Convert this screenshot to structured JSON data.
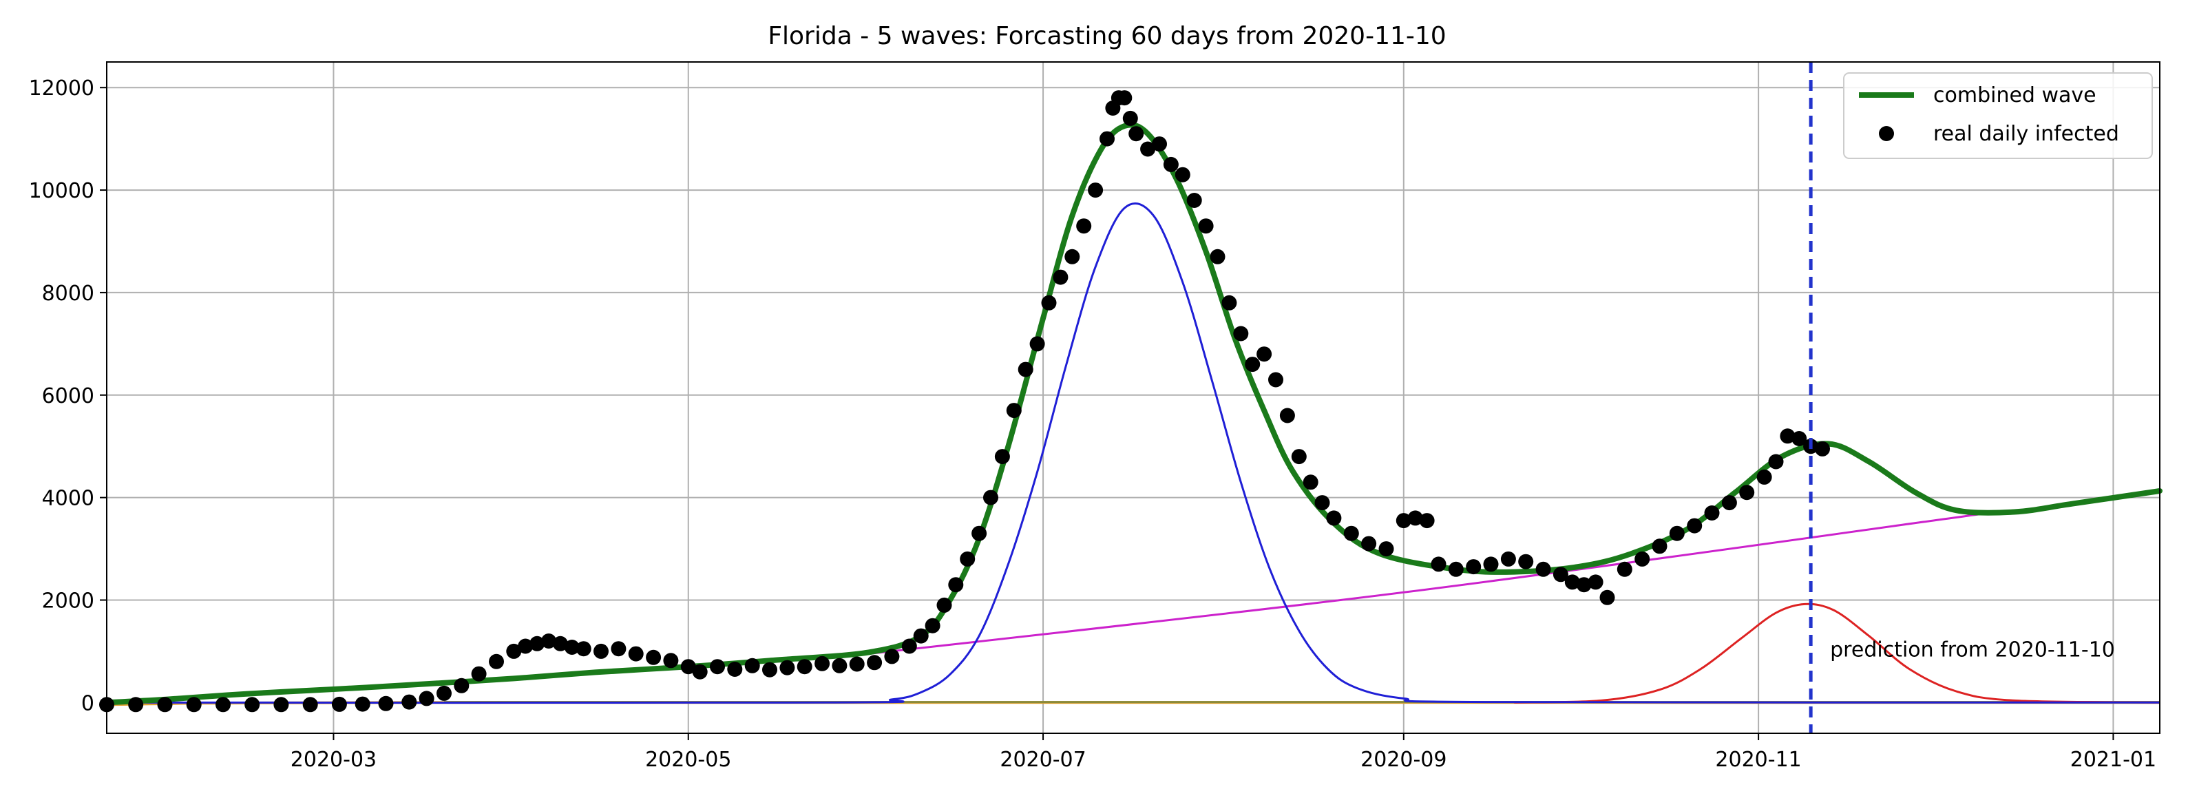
{
  "chart_data": {
    "type": "line",
    "title": "Florida - 5 waves:  Forcasting 60 days from 2020-11-10",
    "xlabel": "",
    "ylabel": "",
    "x_range": [
      "2020-01-22",
      "2021-01-09"
    ],
    "ylim": [
      -600,
      12500
    ],
    "grid": true,
    "x_ticks": [
      "2020-03",
      "2020-05",
      "2020-07",
      "2020-09",
      "2020-11",
      "2021-01"
    ],
    "y_ticks": [
      0,
      2000,
      4000,
      6000,
      8000,
      10000,
      12000
    ],
    "legend_position": "top-right",
    "legend": [
      {
        "label": "combined wave",
        "kind": "line",
        "color": "#1a7a1a"
      },
      {
        "label": "real daily infected",
        "kind": "marker",
        "color": "#000000"
      }
    ],
    "forecast_line": {
      "date": "2020-11-10",
      "color": "#2233cc"
    },
    "annotation": "prediction from 2020-11-10",
    "series": [
      {
        "name": "combined wave",
        "kind": "line",
        "color": "#1a7a1a",
        "width": 8,
        "points": [
          [
            "2020-01-22",
            0
          ],
          [
            "2020-02-01",
            60
          ],
          [
            "2020-02-15",
            170
          ],
          [
            "2020-03-01",
            260
          ],
          [
            "2020-03-15",
            350
          ],
          [
            "2020-04-01",
            470
          ],
          [
            "2020-04-15",
            590
          ],
          [
            "2020-05-01",
            700
          ],
          [
            "2020-05-15",
            820
          ],
          [
            "2020-06-01",
            980
          ],
          [
            "2020-06-10",
            1300
          ],
          [
            "2020-06-15",
            2000
          ],
          [
            "2020-06-20",
            3200
          ],
          [
            "2020-06-25",
            5000
          ],
          [
            "2020-07-01",
            7500
          ],
          [
            "2020-07-06",
            9500
          ],
          [
            "2020-07-11",
            10800
          ],
          [
            "2020-07-15",
            11250
          ],
          [
            "2020-07-19",
            11100
          ],
          [
            "2020-07-24",
            10200
          ],
          [
            "2020-07-29",
            8800
          ],
          [
            "2020-08-03",
            7100
          ],
          [
            "2020-08-08",
            5700
          ],
          [
            "2020-08-13",
            4500
          ],
          [
            "2020-08-20",
            3500
          ],
          [
            "2020-08-28",
            2900
          ],
          [
            "2020-09-10",
            2600
          ],
          [
            "2020-09-20",
            2550
          ],
          [
            "2020-10-01",
            2650
          ],
          [
            "2020-10-10",
            2900
          ],
          [
            "2020-10-20",
            3400
          ],
          [
            "2020-10-28",
            4100
          ],
          [
            "2020-11-05",
            4800
          ],
          [
            "2020-11-13",
            5050
          ],
          [
            "2020-11-20",
            4700
          ],
          [
            "2020-11-28",
            4100
          ],
          [
            "2020-12-05",
            3750
          ],
          [
            "2020-12-15",
            3720
          ],
          [
            "2020-12-25",
            3880
          ],
          [
            "2021-01-09",
            4130
          ]
        ]
      },
      {
        "name": "wave 1",
        "kind": "line",
        "color": "#1f1fd6",
        "width": 3,
        "points": [
          [
            "2020-01-22",
            0
          ],
          [
            "2020-05-25",
            0
          ],
          [
            "2020-06-05",
            60
          ],
          [
            "2020-06-10",
            200
          ],
          [
            "2020-06-15",
            550
          ],
          [
            "2020-06-20",
            1300
          ],
          [
            "2020-06-25",
            2700
          ],
          [
            "2020-06-30",
            4500
          ],
          [
            "2020-07-05",
            6600
          ],
          [
            "2020-07-10",
            8500
          ],
          [
            "2020-07-15",
            9650
          ],
          [
            "2020-07-20",
            9500
          ],
          [
            "2020-07-25",
            8200
          ],
          [
            "2020-07-30",
            6300
          ],
          [
            "2020-08-04",
            4300
          ],
          [
            "2020-08-09",
            2600
          ],
          [
            "2020-08-14",
            1400
          ],
          [
            "2020-08-19",
            650
          ],
          [
            "2020-08-24",
            280
          ],
          [
            "2020-09-01",
            80
          ],
          [
            "2020-09-15",
            10
          ],
          [
            "2021-01-09",
            0
          ]
        ]
      },
      {
        "name": "wave 2",
        "kind": "line",
        "color": "#cc22cc",
        "width": 3,
        "points": [
          [
            "2020-06-01",
            950
          ],
          [
            "2020-09-01",
            2150
          ],
          [
            "2020-12-01",
            3550
          ],
          [
            "2020-12-10",
            3700
          ]
        ]
      },
      {
        "name": "wave 3",
        "kind": "line",
        "color": "#dd2222",
        "width": 3,
        "points": [
          [
            "2020-09-20",
            0
          ],
          [
            "2020-10-05",
            40
          ],
          [
            "2020-10-15",
            250
          ],
          [
            "2020-10-22",
            650
          ],
          [
            "2020-10-29",
            1250
          ],
          [
            "2020-11-04",
            1750
          ],
          [
            "2020-11-09",
            1920
          ],
          [
            "2020-11-14",
            1800
          ],
          [
            "2020-11-20",
            1300
          ],
          [
            "2020-11-27",
            650
          ],
          [
            "2020-12-05",
            220
          ],
          [
            "2020-12-15",
            40
          ],
          [
            "2021-01-09",
            0
          ]
        ]
      },
      {
        "name": "wave 4",
        "kind": "line",
        "color": "#e0a030",
        "width": 4,
        "points": [
          [
            "2020-01-22",
            -40
          ],
          [
            "2020-03-20",
            0
          ],
          [
            "2021-01-09",
            0
          ]
        ]
      },
      {
        "name": "wave 5",
        "kind": "line",
        "color": "#8a8a3a",
        "width": 3,
        "points": [
          [
            "2020-03-20",
            10
          ],
          [
            "2021-01-09",
            10
          ]
        ]
      },
      {
        "name": "real daily infected",
        "kind": "scatter",
        "color": "#000000",
        "points": [
          [
            "2020-01-22",
            -40
          ],
          [
            "2020-01-27",
            -40
          ],
          [
            "2020-02-01",
            -40
          ],
          [
            "2020-02-06",
            -40
          ],
          [
            "2020-02-11",
            -40
          ],
          [
            "2020-02-16",
            -40
          ],
          [
            "2020-02-21",
            -40
          ],
          [
            "2020-02-26",
            -40
          ],
          [
            "2020-03-02",
            -35
          ],
          [
            "2020-03-06",
            -30
          ],
          [
            "2020-03-10",
            -20
          ],
          [
            "2020-03-14",
            10
          ],
          [
            "2020-03-17",
            80
          ],
          [
            "2020-03-20",
            180
          ],
          [
            "2020-03-23",
            330
          ],
          [
            "2020-03-26",
            560
          ],
          [
            "2020-03-29",
            800
          ],
          [
            "2020-04-01",
            1000
          ],
          [
            "2020-04-03",
            1100
          ],
          [
            "2020-04-05",
            1150
          ],
          [
            "2020-04-07",
            1200
          ],
          [
            "2020-04-09",
            1150
          ],
          [
            "2020-04-11",
            1080
          ],
          [
            "2020-04-13",
            1050
          ],
          [
            "2020-04-16",
            1000
          ],
          [
            "2020-04-19",
            1050
          ],
          [
            "2020-04-22",
            950
          ],
          [
            "2020-04-25",
            880
          ],
          [
            "2020-04-28",
            820
          ],
          [
            "2020-05-01",
            700
          ],
          [
            "2020-05-03",
            600
          ],
          [
            "2020-05-06",
            700
          ],
          [
            "2020-05-09",
            650
          ],
          [
            "2020-05-12",
            720
          ],
          [
            "2020-05-15",
            640
          ],
          [
            "2020-05-18",
            680
          ],
          [
            "2020-05-21",
            700
          ],
          [
            "2020-05-24",
            760
          ],
          [
            "2020-05-27",
            720
          ],
          [
            "2020-05-30",
            750
          ],
          [
            "2020-06-02",
            780
          ],
          [
            "2020-06-05",
            900
          ],
          [
            "2020-06-08",
            1100
          ],
          [
            "2020-06-10",
            1300
          ],
          [
            "2020-06-12",
            1500
          ],
          [
            "2020-06-14",
            1900
          ],
          [
            "2020-06-16",
            2300
          ],
          [
            "2020-06-18",
            2800
          ],
          [
            "2020-06-20",
            3300
          ],
          [
            "2020-06-22",
            4000
          ],
          [
            "2020-06-24",
            4800
          ],
          [
            "2020-06-26",
            5700
          ],
          [
            "2020-06-28",
            6500
          ],
          [
            "2020-06-30",
            7000
          ],
          [
            "2020-07-02",
            7800
          ],
          [
            "2020-07-04",
            8300
          ],
          [
            "2020-07-06",
            8700
          ],
          [
            "2020-07-08",
            9300
          ],
          [
            "2020-07-10",
            10000
          ],
          [
            "2020-07-12",
            11000
          ],
          [
            "2020-07-13",
            11600
          ],
          [
            "2020-07-14",
            11800
          ],
          [
            "2020-07-15",
            11800
          ],
          [
            "2020-07-16",
            11400
          ],
          [
            "2020-07-17",
            11100
          ],
          [
            "2020-07-19",
            10800
          ],
          [
            "2020-07-21",
            10900
          ],
          [
            "2020-07-23",
            10500
          ],
          [
            "2020-07-25",
            10300
          ],
          [
            "2020-07-27",
            9800
          ],
          [
            "2020-07-29",
            9300
          ],
          [
            "2020-07-31",
            8700
          ],
          [
            "2020-08-02",
            7800
          ],
          [
            "2020-08-04",
            7200
          ],
          [
            "2020-08-06",
            6600
          ],
          [
            "2020-08-08",
            6800
          ],
          [
            "2020-08-10",
            6300
          ],
          [
            "2020-08-12",
            5600
          ],
          [
            "2020-08-14",
            4800
          ],
          [
            "2020-08-16",
            4300
          ],
          [
            "2020-08-18",
            3900
          ],
          [
            "2020-08-20",
            3600
          ],
          [
            "2020-08-23",
            3300
          ],
          [
            "2020-08-26",
            3100
          ],
          [
            "2020-08-29",
            3000
          ],
          [
            "2020-09-01",
            3550
          ],
          [
            "2020-09-03",
            3600
          ],
          [
            "2020-09-05",
            3550
          ],
          [
            "2020-09-07",
            2700
          ],
          [
            "2020-09-10",
            2600
          ],
          [
            "2020-09-13",
            2650
          ],
          [
            "2020-09-16",
            2700
          ],
          [
            "2020-09-19",
            2800
          ],
          [
            "2020-09-22",
            2750
          ],
          [
            "2020-09-25",
            2600
          ],
          [
            "2020-09-28",
            2500
          ],
          [
            "2020-09-30",
            2350
          ],
          [
            "2020-10-02",
            2300
          ],
          [
            "2020-10-04",
            2350
          ],
          [
            "2020-10-06",
            2050
          ],
          [
            "2020-10-09",
            2600
          ],
          [
            "2020-10-12",
            2800
          ],
          [
            "2020-10-15",
            3050
          ],
          [
            "2020-10-18",
            3300
          ],
          [
            "2020-10-21",
            3450
          ],
          [
            "2020-10-24",
            3700
          ],
          [
            "2020-10-27",
            3900
          ],
          [
            "2020-10-30",
            4100
          ],
          [
            "2020-11-02",
            4400
          ],
          [
            "2020-11-04",
            4700
          ],
          [
            "2020-11-06",
            5200
          ],
          [
            "2020-11-08",
            5150
          ],
          [
            "2020-11-10",
            5000
          ],
          [
            "2020-11-12",
            4950
          ]
        ]
      }
    ]
  }
}
